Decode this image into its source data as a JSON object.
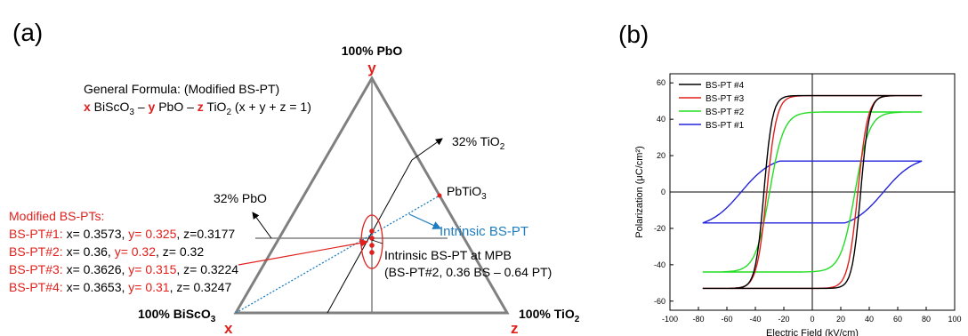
{
  "panel_a": {
    "label": "(a)",
    "vertex_top": "100% PbO",
    "vertex_top_var": "y",
    "vertex_left": "100% BiScO",
    "vertex_left_sub": "3",
    "vertex_left_var": "x",
    "vertex_right": "100% TiO",
    "vertex_right_sub": "2",
    "vertex_right_var": "z",
    "formula_title": "General Formula: (Modified BS-PT)",
    "formula_x": "x",
    "formula_bisco": " BiScO",
    "formula_bisco_sub": "3",
    "formula_dash1": " – ",
    "formula_y": "y",
    "formula_pbo": " PbO – ",
    "formula_z": "z",
    "formula_tio": " TiO",
    "formula_tio_sub": "2",
    "formula_constraint": "   (x + y + z = 1)",
    "label_tio2_pct": "32% TiO",
    "label_tio2_sub": "2",
    "label_pbo_pct": "32% PbO",
    "label_pbtio": "PbTiO",
    "label_pbtio_sub": "3",
    "label_intrinsic": "Intrinsic BS-PT",
    "mpb_line1": "Intrinsic BS-PT at MPB",
    "mpb_line2": "(BS-PT#2, 0.36 BS – 0.64 PT)",
    "modified_title": "Modified BS-PTs:",
    "compositions": [
      {
        "name": "BS-PT#1:",
        "x": "x= 0.3573,",
        "y": "y= 0.325",
        "z": ", z=0.3177"
      },
      {
        "name": "BS-PT#2:",
        "x": "x= 0.36,",
        "y": "y= 0.32",
        "z": ", z= 0.32"
      },
      {
        "name": "BS-PT#3:",
        "x": "x= 0.3626,",
        "y": "y= 0.315",
        "z": ", z= 0.3224"
      },
      {
        "name": "BS-PT#4:",
        "x": "x= 0.3653,",
        "y": "y= 0.31",
        "z": ", z= 0.3247"
      }
    ]
  },
  "panel_b": {
    "label": "(b)"
  },
  "colors": {
    "red": "#e0201c",
    "blue": "#1e7cc0",
    "axis_gray": "#808080"
  },
  "chart_data": {
    "type": "line",
    "title": "",
    "xlabel": "Electric Field (kV/cm)",
    "ylabel": "Polarization (μC/cm²)",
    "xlim": [
      -100,
      100
    ],
    "ylim": [
      -65,
      65
    ],
    "xticks": [
      -100,
      -80,
      -60,
      -40,
      -20,
      0,
      20,
      40,
      60,
      80,
      100
    ],
    "yticks": [
      -60,
      -40,
      -20,
      0,
      20,
      40,
      60
    ],
    "legend_position": "top-left",
    "series": [
      {
        "name": "BS-PT #4",
        "color": "#000000",
        "Emax": 77,
        "Pmax": 53,
        "Ec": 34,
        "Pr": 44,
        "sharp": 6
      },
      {
        "name": "BS-PT #3",
        "color": "#e0201c",
        "Emax": 77,
        "Pmax": 53,
        "Ec": 32,
        "Pr": 43,
        "sharp": 7
      },
      {
        "name": "BS-PT #2",
        "color": "#22dd22",
        "Emax": 77,
        "Pmax": 44,
        "Ec": 30,
        "Pr": 33,
        "sharp": 10
      },
      {
        "name": "BS-PT #1",
        "color": "#2323dd",
        "Emax": 77,
        "Pmax": 17,
        "Ec": 50,
        "Pr": 15,
        "sharp": 22
      }
    ]
  }
}
